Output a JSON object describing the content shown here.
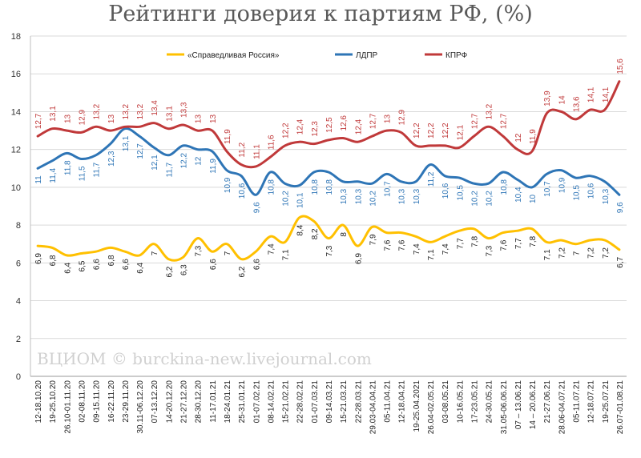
{
  "title": "Рейтинги доверия к партиям РФ, (%)",
  "watermark": "ВЦИОМ © burckina-new.livejournal.com",
  "chart_data": {
    "type": "line",
    "title": "Рейтинги доверия к партиям РФ, (%)",
    "xlabel": "",
    "ylabel": "",
    "ylim": [
      0,
      18
    ],
    "yticks": [
      0,
      2,
      4,
      6,
      8,
      10,
      12,
      14,
      16,
      18
    ],
    "grid": true,
    "legend_position": "top",
    "categories": [
      "12-18.10.20",
      "19-25.10.20",
      "26.10-01.11.20",
      "02-08.11.20",
      "09-15.11.20",
      "16-22.11.20",
      "23-29.11.20",
      "30.11-06.12.20",
      "07-13.12.20",
      "14-20.12.20",
      "21-27.12.20",
      "28-30.12.20",
      "11-17.01.21",
      "18-24.01.21",
      "25-31.01.21",
      "01-07.02.21",
      "08-14.02.21",
      "15-21.02.21",
      "22-28.02.21",
      "01-07.03.21",
      "09-14.03.21",
      "15-21.03.21",
      "22-28.03.21",
      "29.03-04.04.21",
      "05-11.04.21",
      "12-18.04.21",
      "19-25.04.2021",
      "26.04-02.05.21",
      "03-08.05.21",
      "10-16.05.21",
      "17-23.05.21",
      "24-30.05.21",
      "31.05-06.06.21",
      "07 – 13.06.21",
      "14 – 20.06.21",
      "21-27.06.21",
      "28.06-04.07.21",
      "05-11.07.21",
      "12-18.07.21",
      "19-25.07.21",
      "26.07-01.08.21"
    ],
    "series": [
      {
        "name": "«Справедливая Россия»",
        "color": "#ffc000",
        "values": [
          6.9,
          6.8,
          6.4,
          6.5,
          6.6,
          6.8,
          6.6,
          6.4,
          7,
          6.2,
          6.3,
          7.3,
          6.6,
          7,
          6.2,
          6.6,
          7.4,
          7.1,
          8.4,
          8.2,
          7.3,
          8,
          6.9,
          7.9,
          7.6,
          7.6,
          7.4,
          7.1,
          7.4,
          7.7,
          7.8,
          7.3,
          7.6,
          7.7,
          7.8,
          7.1,
          7.2,
          7,
          7.2,
          7.2,
          6.7
        ]
      },
      {
        "name": "ЛДПР",
        "color": "#2e75b6",
        "values": [
          11,
          11.4,
          11.8,
          11.5,
          11.7,
          12.3,
          13.1,
          12.7,
          12.1,
          11.7,
          12.2,
          12,
          11.9,
          10.9,
          10.6,
          9.6,
          10.8,
          10.2,
          10.1,
          10.8,
          10.8,
          10.3,
          10.3,
          10.2,
          10.7,
          10.3,
          10.3,
          11.2,
          10.6,
          10.5,
          10.2,
          10.2,
          10.8,
          10.4,
          10,
          10.7,
          10.9,
          10.5,
          10.6,
          10.3,
          9.6
        ]
      },
      {
        "name": "КПРФ",
        "color": "#c0393a",
        "values": [
          12.7,
          13.1,
          13,
          12.9,
          13.2,
          13,
          13.2,
          13.2,
          13.4,
          13.1,
          13.3,
          13,
          13,
          11.9,
          11.2,
          11.1,
          11.6,
          12.2,
          12.4,
          12.3,
          12.5,
          12.6,
          12.4,
          12.7,
          13,
          12.9,
          12.2,
          12.2,
          12.2,
          12.1,
          12.7,
          13.2,
          12.7,
          12,
          11.9,
          13.9,
          14,
          13.6,
          14.1,
          14.1,
          15.6
        ]
      }
    ]
  }
}
